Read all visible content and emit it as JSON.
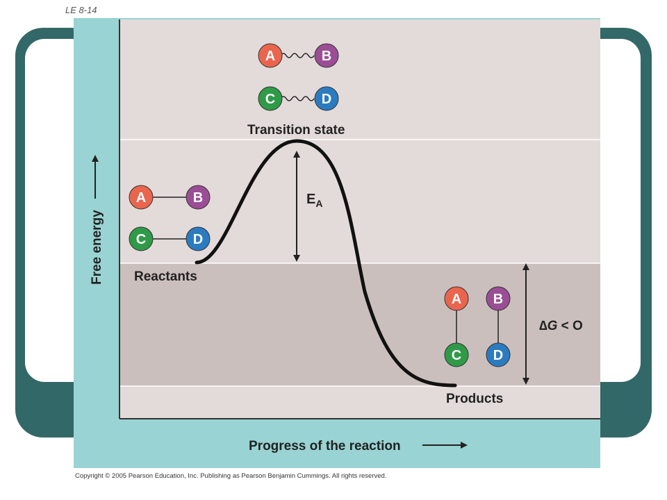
{
  "corner_label": "LE 8-14",
  "copyright": "Copyright © 2005 Pearson Education, Inc. Publishing as Pearson Benjamin Cummings. All rights reserved.",
  "y_axis_label": "Free energy",
  "x_axis_label": "Progress of the reaction",
  "states": {
    "transition": "Transition state",
    "reactants": "Reactants",
    "products": "Products"
  },
  "activation_energy": {
    "symbol": "E",
    "subscript": "A"
  },
  "delta_g": {
    "symbol": "∆",
    "variable": "G",
    "relation": " < O"
  },
  "atoms": {
    "a": "A",
    "b": "B",
    "c": "C",
    "d": "D"
  },
  "colors": {
    "atom_a": "#e9654e",
    "atom_b": "#9b4d95",
    "atom_c": "#2f9a47",
    "atom_d": "#2b7bc0",
    "teal_frame": "#336868",
    "panel": "#99d3d3",
    "band_light": "#e3dbd9",
    "band_dark": "#cbbfbd"
  }
}
